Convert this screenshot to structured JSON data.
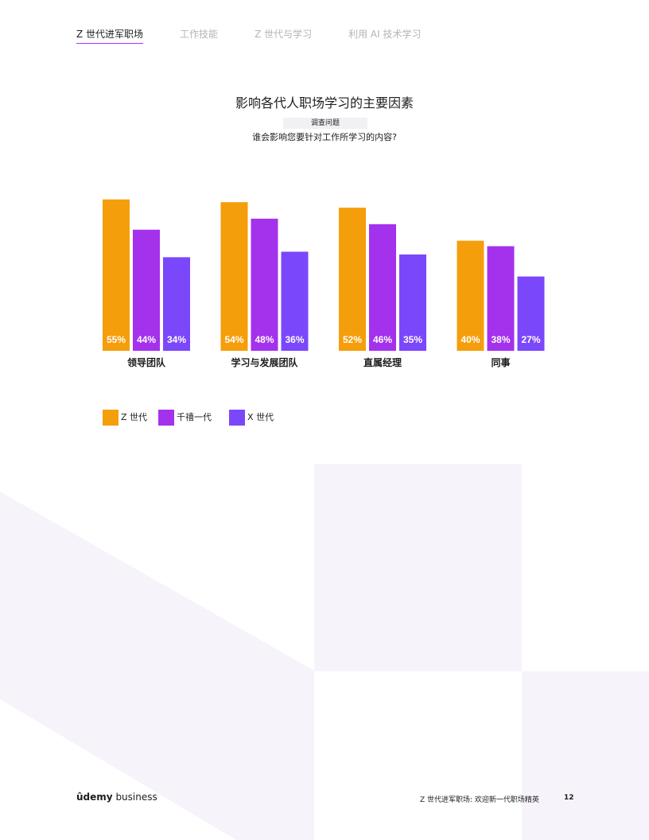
{
  "nav": {
    "tabs": [
      {
        "label": "Z 世代进军职场",
        "active": true
      },
      {
        "label": "工作技能",
        "active": false
      },
      {
        "label": "Z 世代与学习",
        "active": false
      },
      {
        "label": "利用 AI 技术学习",
        "active": false
      }
    ]
  },
  "question": {
    "label": "调查问题",
    "text": "谁会影响您要针对工作所学习的内容?"
  },
  "colors": {
    "gen_z": "#f59e0b",
    "millennials": "#a431ec",
    "gen_x": "#7b47fb",
    "background_shape": "#f7f3fb"
  },
  "chart_data": {
    "type": "bar",
    "title": "影响各代人职场学习的主要因素",
    "categories": [
      "领导团队",
      "学习与发展团队",
      "直属经理",
      "同事"
    ],
    "series": [
      {
        "name": "Z 世代",
        "values": [
          55,
          54,
          52,
          40
        ]
      },
      {
        "name": "千禧一代",
        "values": [
          44,
          48,
          46,
          38
        ]
      },
      {
        "name": "X 世代",
        "values": [
          34,
          36,
          35,
          27
        ]
      }
    ],
    "value_suffix": "%",
    "ylim": [
      0,
      55
    ],
    "grid": false,
    "legend_position": "bottom-left"
  },
  "footer": {
    "logo_brand": "ûdemy",
    "logo_suffix": "business",
    "title": "Z 世代进军职场: 欢迎新一代职场精英",
    "page_number": "12"
  }
}
